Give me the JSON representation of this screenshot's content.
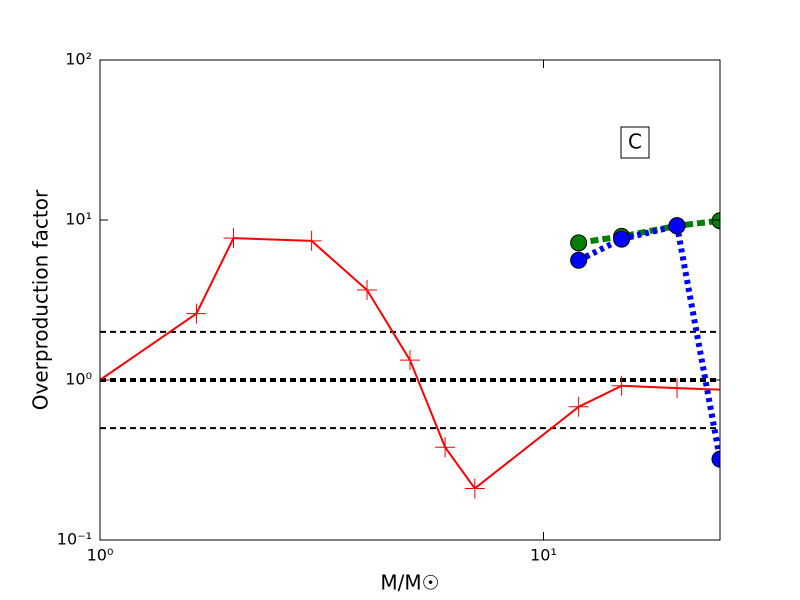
{
  "chart_data": {
    "type": "line",
    "xlabel": "M/M☉",
    "ylabel": "Overproduction factor",
    "annotation": "C",
    "xlog": true,
    "ylog": true,
    "xlim": [
      1,
      25
    ],
    "ylim": [
      0.1,
      100
    ],
    "xticks": [
      {
        "value": 1,
        "label": "10⁰"
      },
      {
        "value": 10,
        "label": "10¹"
      }
    ],
    "yticks": [
      {
        "value": 0.1,
        "label": "10⁻¹"
      },
      {
        "value": 1,
        "label": "10⁰"
      },
      {
        "value": 10,
        "label": "10¹"
      },
      {
        "value": 100,
        "label": "10²"
      }
    ],
    "reference_lines": [
      {
        "value": 2,
        "width": 2
      },
      {
        "value": 1,
        "width": 4
      },
      {
        "value": 0.5,
        "width": 2
      }
    ],
    "series": [
      {
        "color": "#ff0000",
        "marker": "plus",
        "dash": "none",
        "width": 2,
        "x": [
          1,
          1.65,
          2,
          3,
          4,
          5,
          6,
          7,
          12,
          15,
          20,
          25
        ],
        "values": [
          1.0,
          2.6,
          7.7,
          7.4,
          3.65,
          1.33,
          0.38,
          0.21,
          0.68,
          0.92,
          0.89,
          0.87
        ]
      },
      {
        "color": "#008000",
        "marker": "circle",
        "dash": "dashed",
        "width": 6,
        "x": [
          12,
          15,
          20,
          25
        ],
        "values": [
          7.2,
          7.9,
          9.2,
          9.9
        ]
      },
      {
        "color": "#0000ff",
        "marker": "circle",
        "dash": "dotted",
        "width": 6,
        "x": [
          12,
          15,
          20,
          25
        ],
        "values": [
          5.6,
          7.6,
          9.2,
          0.32
        ]
      }
    ]
  }
}
